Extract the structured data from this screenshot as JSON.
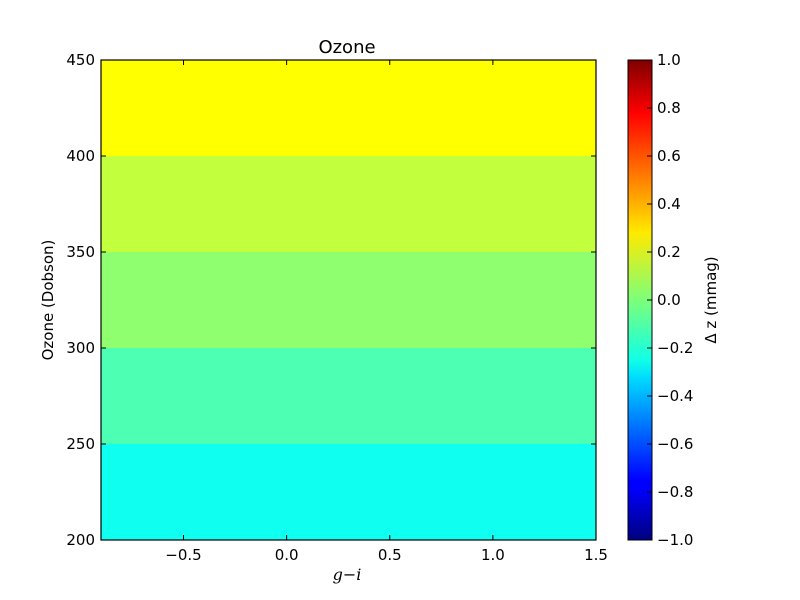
{
  "chart_data": {
    "type": "heatmap",
    "title": "Ozone",
    "xlabel": "g−i",
    "ylabel": "Ozone (Dobson)",
    "xlim": [
      -0.9,
      1.5
    ],
    "ylim": [
      200,
      450
    ],
    "xticks": [
      -0.5,
      0.0,
      0.5,
      1.0,
      1.5
    ],
    "xtick_labels": [
      "−0.5",
      "0.0",
      "0.5",
      "1.0",
      "1.5"
    ],
    "yticks": [
      200,
      250,
      300,
      350,
      400,
      450
    ],
    "ytick_labels": [
      "200",
      "250",
      "300",
      "350",
      "400",
      "450"
    ],
    "bands": [
      {
        "y0": 200,
        "y1": 250,
        "value": -0.22
      },
      {
        "y0": 250,
        "y1": 300,
        "value": -0.1
      },
      {
        "y0": 300,
        "y1": 350,
        "value": 0.03
      },
      {
        "y0": 350,
        "y1": 400,
        "value": 0.13
      },
      {
        "y0": 400,
        "y1": 450,
        "value": 0.25
      }
    ],
    "colorbar": {
      "label": "Δ z (mmag)",
      "colormap": "jet",
      "range": [
        -1.0,
        1.0
      ],
      "ticks": [
        -1.0,
        -0.8,
        -0.6,
        -0.4,
        -0.2,
        0.0,
        0.2,
        0.4,
        0.6,
        0.8,
        1.0
      ],
      "tick_labels": [
        "−1.0",
        "−0.8",
        "−0.6",
        "−0.4",
        "−0.2",
        "0.0",
        "0.2",
        "0.4",
        "0.6",
        "0.8",
        "1.0"
      ]
    },
    "grid": false
  }
}
